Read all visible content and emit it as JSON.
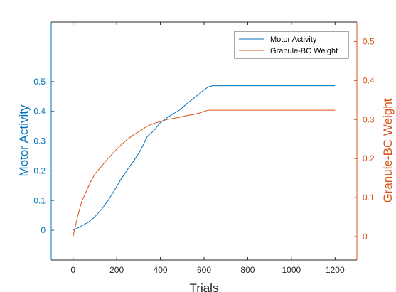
{
  "chart_data": {
    "type": "line",
    "xlabel": "Trials",
    "xlim": [
      -100,
      1300
    ],
    "xticks": [
      0,
      200,
      400,
      600,
      800,
      1000,
      1200
    ],
    "left_axis": {
      "label": "Motor Activity",
      "ylim": [
        -0.1,
        0.7
      ],
      "ticks": [
        0,
        0.1,
        0.2,
        0.3,
        0.4,
        0.5
      ],
      "color": "#0072BD"
    },
    "right_axis": {
      "label": "Granule-BC Weight",
      "ylim": [
        -0.06,
        0.55
      ],
      "ticks": [
        0,
        0.1,
        0.2,
        0.3,
        0.4,
        0.5
      ],
      "color": "#D95319"
    },
    "legend": {
      "position": "top-right"
    },
    "grid": false,
    "series": [
      {
        "name": "Motor Activity",
        "axis": "left",
        "color": "#0072BD",
        "x": [
          0,
          20,
          40,
          70,
          100,
          130,
          160,
          190,
          220,
          250,
          280,
          310,
          340,
          370,
          400,
          430,
          460,
          490,
          520,
          550,
          580,
          600,
          620,
          640,
          700,
          800,
          900,
          1000,
          1100,
          1200
        ],
        "y": [
          0.0,
          0.007,
          0.015,
          0.027,
          0.045,
          0.07,
          0.1,
          0.135,
          0.172,
          0.205,
          0.235,
          0.27,
          0.315,
          0.335,
          0.362,
          0.378,
          0.392,
          0.405,
          0.425,
          0.442,
          0.46,
          0.472,
          0.482,
          0.486,
          0.486,
          0.486,
          0.486,
          0.486,
          0.486,
          0.486
        ]
      },
      {
        "name": "Granule-BC Weight",
        "axis": "right",
        "color": "#D95319",
        "x": [
          0,
          20,
          40,
          60,
          80,
          100,
          130,
          160,
          190,
          220,
          250,
          280,
          310,
          340,
          370,
          400,
          430,
          460,
          490,
          520,
          550,
          580,
          600,
          620,
          700,
          800,
          900,
          1000,
          1100,
          1200
        ],
        "y": [
          0.0,
          0.05,
          0.09,
          0.115,
          0.14,
          0.16,
          0.18,
          0.2,
          0.218,
          0.235,
          0.25,
          0.262,
          0.272,
          0.283,
          0.29,
          0.295,
          0.3,
          0.303,
          0.306,
          0.31,
          0.313,
          0.317,
          0.321,
          0.324,
          0.324,
          0.324,
          0.324,
          0.324,
          0.324,
          0.324
        ]
      }
    ]
  }
}
